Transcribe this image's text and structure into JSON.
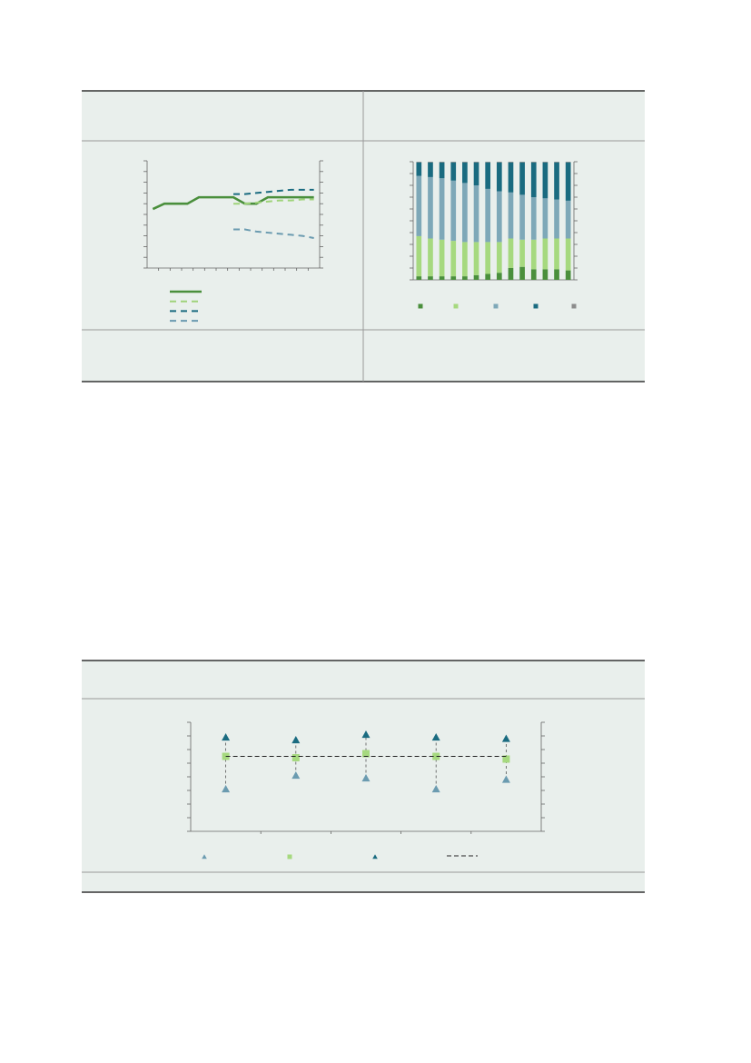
{
  "chart_data": [
    {
      "type": "line",
      "categories": [
        null,
        null,
        null,
        null,
        null,
        null,
        null,
        null,
        null,
        null,
        null,
        null,
        null,
        null,
        null
      ],
      "ylim": [
        0,
        10
      ],
      "yticks": [
        0,
        1,
        2,
        3,
        4,
        5,
        6,
        7,
        8,
        9,
        10
      ],
      "series": [
        {
          "color": "#4a8f3c",
          "dashed": false,
          "values": [
            5.5,
            6.0,
            6.0,
            6.0,
            6.6,
            6.6,
            6.6,
            6.6,
            6.0,
            6.0,
            6.6,
            6.6,
            6.6,
            6.6,
            6.6
          ]
        },
        {
          "color": "#9fd37a",
          "dashed": true,
          "values": [
            null,
            null,
            null,
            null,
            null,
            null,
            null,
            6.0,
            6.0,
            6.1,
            6.2,
            6.3,
            6.3,
            6.4,
            6.4
          ]
        },
        {
          "color": "#1a6b80",
          "dashed": true,
          "values": [
            null,
            null,
            null,
            null,
            null,
            null,
            null,
            6.9,
            6.9,
            7.0,
            7.1,
            7.2,
            7.3,
            7.3,
            7.3
          ]
        },
        {
          "color": "#6b9bb0",
          "dashed": true,
          "values": [
            null,
            null,
            null,
            null,
            null,
            null,
            null,
            3.6,
            3.6,
            3.4,
            3.3,
            3.2,
            3.1,
            3.0,
            2.8
          ]
        }
      ]
    },
    {
      "type": "stacked-bar",
      "categories": [
        null,
        null,
        null,
        null,
        null,
        null,
        null,
        null,
        null,
        null,
        null,
        null,
        null,
        null
      ],
      "ylim": [
        0,
        100
      ],
      "yticks": [
        0,
        10,
        20,
        30,
        40,
        50,
        60,
        70,
        80,
        90,
        100
      ],
      "series": [
        {
          "color": "#4a8f3c",
          "values": [
            3,
            3,
            3,
            3,
            3,
            4,
            5,
            6,
            10,
            11,
            9,
            9,
            9,
            8
          ]
        },
        {
          "color": "#a6d97f",
          "values": [
            34,
            32,
            31,
            30,
            29,
            28,
            27,
            26,
            25,
            23,
            25,
            26,
            26,
            27
          ]
        },
        {
          "color": "#7ea8b8",
          "values": [
            51,
            52,
            52,
            51,
            50,
            48,
            45,
            43,
            39,
            38,
            36,
            34,
            33,
            32
          ]
        },
        {
          "color": "#1a6b80",
          "values": [
            11.5,
            12.5,
            13.5,
            15.5,
            17.5,
            19.5,
            22.5,
            24.5,
            25.5,
            27.5,
            29.5,
            30.5,
            31.5,
            32.5
          ]
        },
        {
          "color": "#8c8c8c",
          "values": [
            0.5,
            0.5,
            0.5,
            0.5,
            0.5,
            0.5,
            0.5,
            0.5,
            0.5,
            0.5,
            0.5,
            0.5,
            0.5,
            0.5
          ]
        }
      ]
    },
    {
      "type": "range",
      "categories": [
        null,
        null,
        null,
        null,
        null
      ],
      "ylim": [
        0,
        8
      ],
      "yticks": [
        0,
        1,
        2,
        3,
        4,
        5,
        6,
        7,
        8
      ],
      "series": [
        {
          "color": "#6b9bb0",
          "marker": "triangle",
          "values": [
            3.1,
            4.1,
            3.9,
            3.1,
            3.8
          ]
        },
        {
          "color": "#a6d97f",
          "marker": "square",
          "values": [
            5.5,
            5.4,
            5.7,
            5.5,
            5.3
          ]
        },
        {
          "color": "#1a6b80",
          "marker": "triangle",
          "values": [
            6.9,
            6.7,
            7.1,
            6.9,
            6.8
          ]
        },
        {
          "color": "#222222",
          "marker": "line",
          "values": [
            5.5,
            5.5,
            5.5,
            5.5,
            5.5
          ]
        }
      ]
    }
  ]
}
